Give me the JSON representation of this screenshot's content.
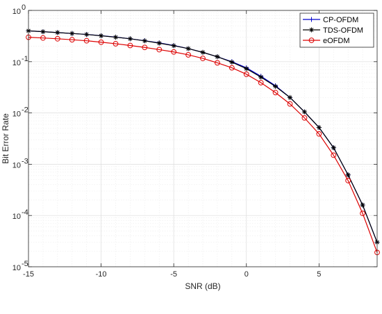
{
  "chart_data": {
    "type": "line",
    "xlabel": "SNR (dB)",
    "ylabel": "Bit Error Rate",
    "xlim": [
      -15,
      9
    ],
    "ylim": [
      1e-05,
      1
    ],
    "yscale": "log",
    "grid": "on (major and minor)",
    "legend_position": "top-right",
    "x_ticks": [
      "-15",
      "-10",
      "-5",
      "0",
      "5"
    ],
    "y_ticks": [
      {
        "base": "10",
        "exp": "0"
      },
      {
        "base": "10",
        "exp": "-1"
      },
      {
        "base": "10",
        "exp": "-2"
      },
      {
        "base": "10",
        "exp": "-3"
      },
      {
        "base": "10",
        "exp": "-4"
      },
      {
        "base": "10",
        "exp": "-5"
      }
    ],
    "x": [
      -15,
      -14,
      -13,
      -12,
      -11,
      -10,
      -9,
      -8,
      -7,
      -6,
      -5,
      -4,
      -3,
      -2,
      -1,
      0,
      1,
      2,
      3,
      4,
      5,
      6,
      7,
      8,
      9
    ],
    "series": [
      {
        "name": "CP-OFDM",
        "color": "#0000cc",
        "marker": "plus",
        "values": [
          0.4,
          0.385,
          0.37,
          0.355,
          0.34,
          0.322,
          0.302,
          0.28,
          0.257,
          0.233,
          0.207,
          0.18,
          0.152,
          0.125,
          0.1,
          0.076,
          0.052,
          0.034,
          0.02,
          0.0105,
          0.0052,
          0.0021,
          0.00062,
          0.00016,
          3e-05
        ]
      },
      {
        "name": "TDS-OFDM",
        "color": "#000000",
        "marker": "asterisk",
        "values": [
          0.4,
          0.385,
          0.37,
          0.355,
          0.34,
          0.32,
          0.3,
          0.28,
          0.255,
          0.23,
          0.205,
          0.18,
          0.152,
          0.125,
          0.098,
          0.073,
          0.05,
          0.033,
          0.02,
          0.0105,
          0.0052,
          0.0021,
          0.00062,
          0.00016,
          3e-05
        ]
      },
      {
        "name": "eOFDM",
        "color": "#dd0000",
        "marker": "circle",
        "values": [
          0.3,
          0.29,
          0.28,
          0.268,
          0.256,
          0.24,
          0.224,
          0.207,
          0.19,
          0.172,
          0.155,
          0.136,
          0.116,
          0.095,
          0.076,
          0.057,
          0.039,
          0.025,
          0.015,
          0.008,
          0.0039,
          0.0015,
          0.00048,
          0.00011,
          1.9e-05
        ]
      }
    ]
  }
}
